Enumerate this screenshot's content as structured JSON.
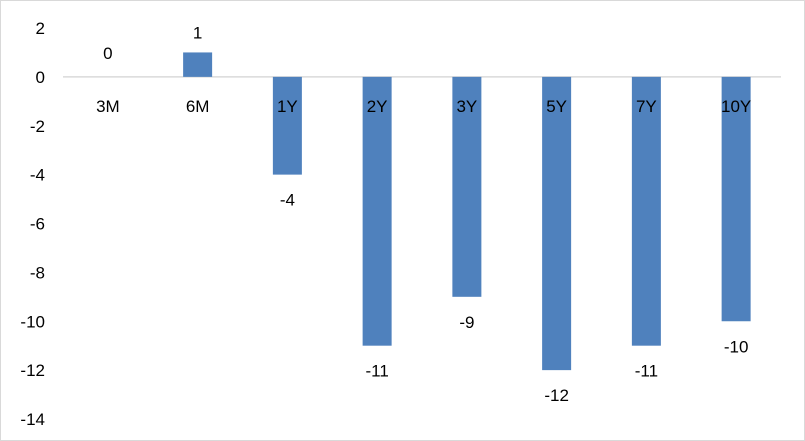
{
  "chart_data": {
    "type": "bar",
    "categories": [
      "3M",
      "6M",
      "1Y",
      "2Y",
      "3Y",
      "5Y",
      "7Y",
      "10Y"
    ],
    "values": [
      0,
      1,
      -4,
      -11,
      -9,
      -12,
      -11,
      -10
    ],
    "ylim": [
      -14,
      2
    ],
    "yticks": [
      2,
      0,
      -2,
      -4,
      -6,
      -8,
      -10,
      -12,
      -14
    ],
    "grid": false,
    "legend": "none",
    "bar_color": "#4f81bd",
    "axis_color": "#d9d9d9",
    "data_labels": true
  }
}
